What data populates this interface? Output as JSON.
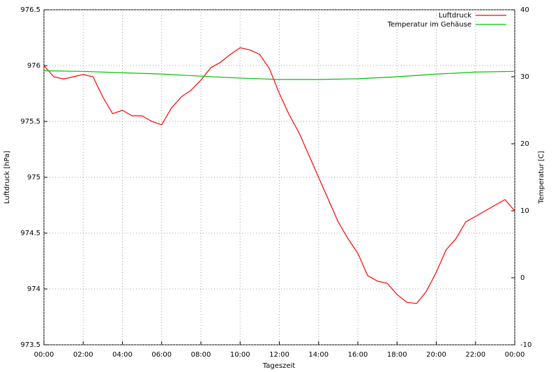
{
  "chart_data": {
    "type": "line",
    "xlabel": "Tageszeit",
    "ylabel": "Luftdruck [hPa]",
    "y2label": "Temperatur [C]",
    "xlim": [
      0,
      24
    ],
    "ylim": [
      973.5,
      976.5
    ],
    "y2lim": [
      -10,
      40
    ],
    "xticks": [
      {
        "value": 0,
        "label": "00:00"
      },
      {
        "value": 2,
        "label": "02:00"
      },
      {
        "value": 4,
        "label": "04:00"
      },
      {
        "value": 6,
        "label": "06:00"
      },
      {
        "value": 8,
        "label": "08:00"
      },
      {
        "value": 10,
        "label": "10:00"
      },
      {
        "value": 12,
        "label": "12:00"
      },
      {
        "value": 14,
        "label": "14:00"
      },
      {
        "value": 16,
        "label": "16:00"
      },
      {
        "value": 18,
        "label": "18:00"
      },
      {
        "value": 20,
        "label": "20:00"
      },
      {
        "value": 22,
        "label": "22:00"
      },
      {
        "value": 24,
        "label": "00:00"
      }
    ],
    "yticks": [
      973.5,
      974,
      974.5,
      975,
      975.5,
      976,
      976.5
    ],
    "y2ticks": [
      -10,
      0,
      10,
      20,
      30,
      40
    ],
    "grid": true,
    "legend": "top-right",
    "series": [
      {
        "name": "Luftdruck",
        "color": "#ff0000",
        "x": [
          0,
          0.5,
          1,
          1.5,
          2,
          2.5,
          3,
          3.5,
          4,
          4.5,
          5,
          5.5,
          6,
          6.5,
          7,
          7.5,
          8,
          8.5,
          9,
          9.5,
          10,
          10.5,
          11,
          11.5,
          12,
          12.5,
          13,
          13.5,
          14,
          14.5,
          15,
          15.5,
          16,
          16.5,
          17,
          17.5,
          18,
          18.5,
          19,
          19.5,
          20,
          20.5,
          21,
          21.5,
          22,
          22.5,
          23,
          23.5,
          24
        ],
        "values": [
          976.0,
          975.9,
          975.88,
          975.9,
          975.92,
          975.9,
          975.72,
          975.57,
          975.6,
          975.55,
          975.55,
          975.5,
          975.47,
          975.62,
          975.72,
          975.78,
          975.87,
          975.98,
          976.03,
          976.1,
          976.16,
          976.14,
          976.1,
          975.97,
          975.75,
          975.56,
          975.4,
          975.2,
          975.0,
          974.8,
          974.6,
          974.45,
          974.32,
          974.12,
          974.07,
          974.05,
          973.95,
          973.88,
          973.87,
          973.98,
          974.15,
          974.35,
          974.45,
          974.6,
          974.65,
          974.7,
          974.75,
          974.8,
          974.7
        ]
      },
      {
        "name": "Temperatur im Gehäuse",
        "color": "#00c000",
        "axis": "y2",
        "x": [
          0,
          2,
          4,
          6,
          8,
          10,
          12,
          14,
          16,
          18,
          20,
          22,
          24
        ],
        "values": [
          30.9,
          30.8,
          30.6,
          30.4,
          30.1,
          29.8,
          29.6,
          29.6,
          29.7,
          30.0,
          30.4,
          30.7,
          30.8
        ]
      }
    ]
  }
}
